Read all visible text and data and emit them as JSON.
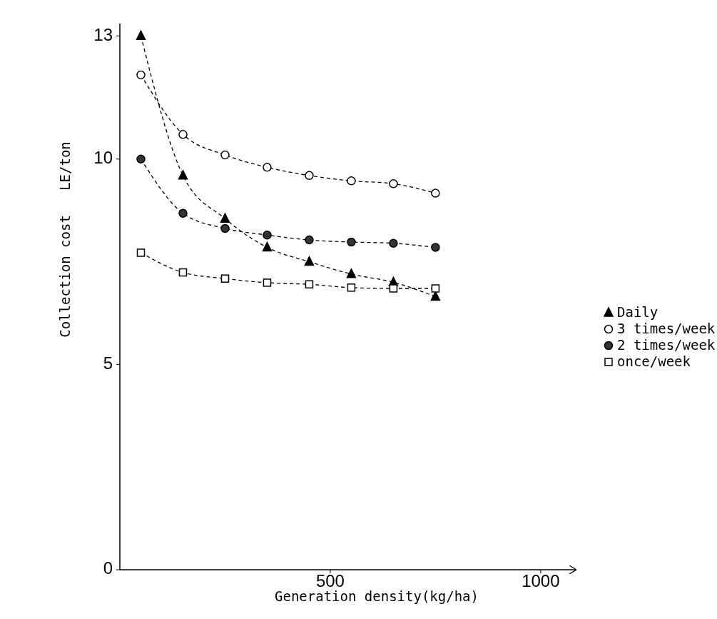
{
  "chart_data": {
    "type": "line",
    "xlabel": "Generation density(kg/ha)",
    "ylabel": "Collection cost   LE/ton",
    "x": [
      50,
      150,
      250,
      350,
      450,
      550,
      650,
      750
    ],
    "series": [
      {
        "name": "Daily",
        "color": "#000000",
        "marker": "triangle",
        "values": [
          13.0,
          9.6,
          8.55,
          7.85,
          7.5,
          7.2,
          7.0,
          6.65
        ]
      },
      {
        "name": "3 times/week",
        "color": "#ffffff",
        "marker": "circle",
        "values": [
          12.05,
          10.6,
          10.1,
          9.8,
          9.6,
          9.47,
          9.4,
          9.17
        ]
      },
      {
        "name": "2 times/week",
        "color": "#333333",
        "marker": "circle",
        "values": [
          10.0,
          8.68,
          8.31,
          8.15,
          8.03,
          7.98,
          7.95,
          7.85
        ]
      },
      {
        "name": "once/week",
        "color": "#ffffff",
        "marker": "square",
        "values": [
          7.72,
          7.24,
          7.09,
          6.99,
          6.95,
          6.87,
          6.85,
          6.85
        ]
      }
    ],
    "xlim": [
      0,
      1085
    ],
    "xticks": [
      500,
      1000
    ],
    "ylim": [
      0,
      13.3
    ],
    "yticks": [
      0,
      5,
      10,
      13
    ],
    "line_style": "dashed",
    "legend": "right",
    "grid": false
  }
}
